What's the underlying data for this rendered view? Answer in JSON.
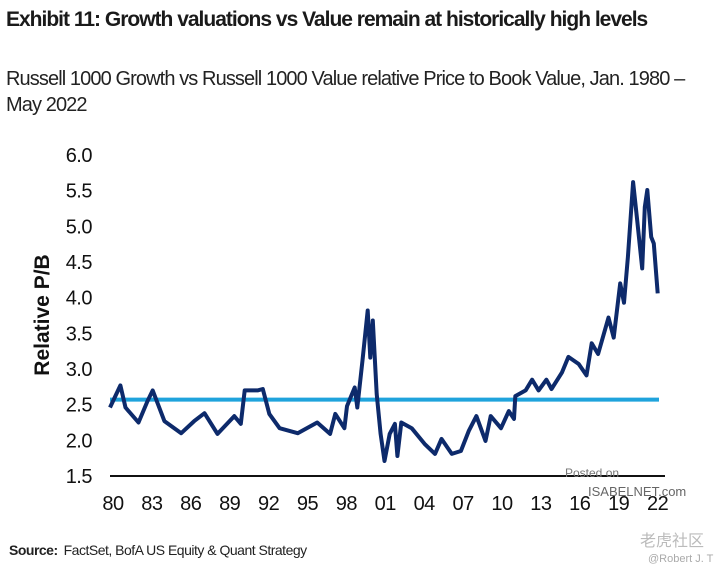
{
  "header": {
    "title": "Exhibit 11: Growth valuations vs Value remain at historically high levels",
    "subtitle": "Russell 1000 Growth vs Russell 1000 Value relative Price to Book Value, Jan. 1980 – May 2022"
  },
  "footer": {
    "source_label": "Source:",
    "source_text": "FactSet, BofA US Equity & Quant Strategy"
  },
  "watermarks": {
    "posted_on": "Posted on",
    "site": "ISABELNET.com",
    "community": "老虎社区",
    "author": "@Robert J. T"
  },
  "colors": {
    "series": "#0d2a6b",
    "average_line": "#1fa3dc",
    "axis": "#111111"
  },
  "chart_data": {
    "type": "line",
    "title": "Exhibit 11: Growth valuations vs Value remain at historically high levels",
    "xlabel": "",
    "ylabel": "Relative P/B",
    "ylim": [
      1.5,
      6.0
    ],
    "xlim": [
      1980,
      2022.4
    ],
    "y_ticks": [
      "6.0",
      "5.5",
      "5.0",
      "4.5",
      "4.0",
      "3.5",
      "3.0",
      "2.5",
      "2.0",
      "1.5"
    ],
    "x_ticks": [
      "80",
      "83",
      "86",
      "89",
      "92",
      "95",
      "98",
      "01",
      "04",
      "07",
      "10",
      "13",
      "16",
      "19",
      "22"
    ],
    "grid": false,
    "legend": "none",
    "series": [
      {
        "x": [
          1980.0,
          1980.8,
          1981.2,
          1982.2,
          1982.9,
          1983.3,
          1984.2,
          1985.5,
          1986.5,
          1987.3,
          1988.3,
          1989.6,
          1990.1,
          1990.4,
          1991.4,
          1991.8,
          1992.3,
          1993.1,
          1994.5,
          1996.0,
          1997.0,
          1997.4,
          1998.1,
          1998.3,
          1998.9,
          1999.1,
          1999.5,
          1999.9,
          2000.1,
          2000.3,
          2000.6,
          2000.9,
          2001.2,
          2001.6,
          2002.0,
          2002.2,
          2002.5,
          2003.3,
          2004.3,
          2005.1,
          2005.6,
          2006.4,
          2007.1,
          2007.7,
          2008.3,
          2009.0,
          2009.4,
          2010.2,
          2010.8,
          2011.2,
          2011.3,
          2012.1,
          2012.6,
          2013.1,
          2013.7,
          2014.1,
          2014.9,
          2015.4,
          2016.2,
          2016.8,
          2017.2,
          2017.7,
          2018.5,
          2018.9,
          2019.4,
          2019.7,
          2020.0,
          2020.4,
          2020.7,
          2021.1,
          2021.3,
          2021.5,
          2021.8,
          2022.0,
          2022.3
        ],
        "values": [
          2.46,
          2.77,
          2.46,
          2.25,
          2.55,
          2.7,
          2.27,
          2.1,
          2.27,
          2.38,
          2.09,
          2.34,
          2.23,
          2.7,
          2.7,
          2.72,
          2.37,
          2.17,
          2.1,
          2.25,
          2.09,
          2.37,
          2.17,
          2.48,
          2.74,
          2.46,
          3.12,
          3.82,
          3.16,
          3.68,
          2.65,
          2.09,
          1.71,
          2.09,
          2.23,
          1.78,
          2.25,
          2.17,
          1.95,
          1.81,
          2.02,
          1.81,
          1.85,
          2.13,
          2.34,
          1.99,
          2.34,
          2.17,
          2.41,
          2.3,
          2.62,
          2.7,
          2.85,
          2.7,
          2.85,
          2.72,
          2.95,
          3.17,
          3.07,
          2.91,
          3.36,
          3.21,
          3.72,
          3.44,
          4.2,
          3.93,
          4.57,
          5.62,
          5.11,
          4.41,
          5.27,
          5.51,
          4.85,
          4.76,
          4.06
        ]
      }
    ],
    "reference_lines": [
      {
        "y": 2.57
      }
    ]
  }
}
